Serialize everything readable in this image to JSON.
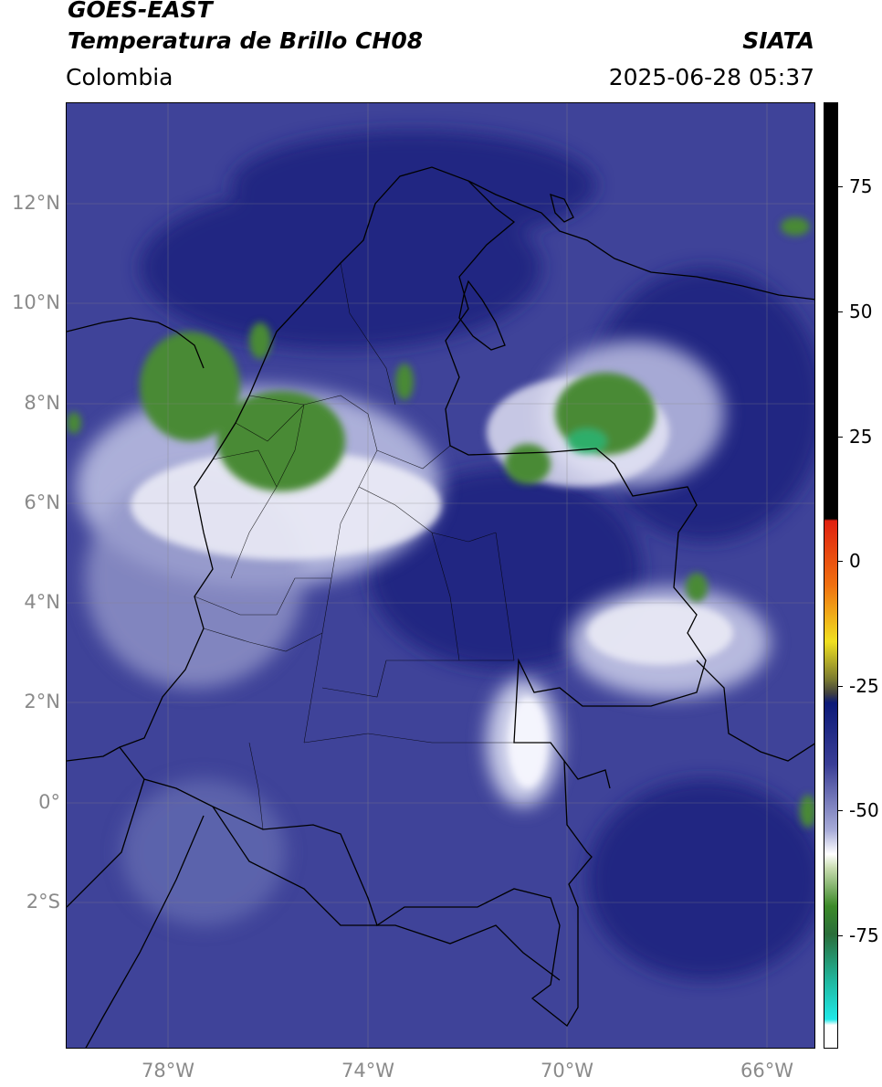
{
  "header": {
    "satellite": "GOES-EAST",
    "product": "Temperatura de Brillo CH08",
    "region": "Colombia",
    "agency": "SIATA",
    "datetime": "2025-06-28 05:37"
  },
  "axes": {
    "lon_ticks": [
      "78°W",
      "74°W",
      "70°W",
      "66°W"
    ],
    "lat_ticks": [
      "12°N",
      "10°N",
      "8°N",
      "6°N",
      "4°N",
      "2°N",
      "0°",
      "2°S"
    ]
  },
  "colorbar": {
    "ticks": [
      "75",
      "50",
      "25",
      "0",
      "-25",
      "-50",
      "-75"
    ],
    "colors": {
      "black": "#000000",
      "red": "#e02010",
      "yellow": "#f0e020",
      "olive": "#7a7a30",
      "navy": "#0c1a78",
      "blue": "#3a3e96",
      "lavender": "#a8acd8",
      "white": "#ffffff",
      "green": "#3c8a28",
      "teal": "#20b8a0",
      "cyan": "#20e8e8"
    }
  },
  "map_colors": {
    "background": "#3f4399",
    "dark": "#1a237e",
    "light": "#b8bbe0",
    "white": "#f0f0f8",
    "green": "#4a8a34",
    "bright_green": "#2fae6a",
    "border": "#000000",
    "grid": "#888888"
  }
}
